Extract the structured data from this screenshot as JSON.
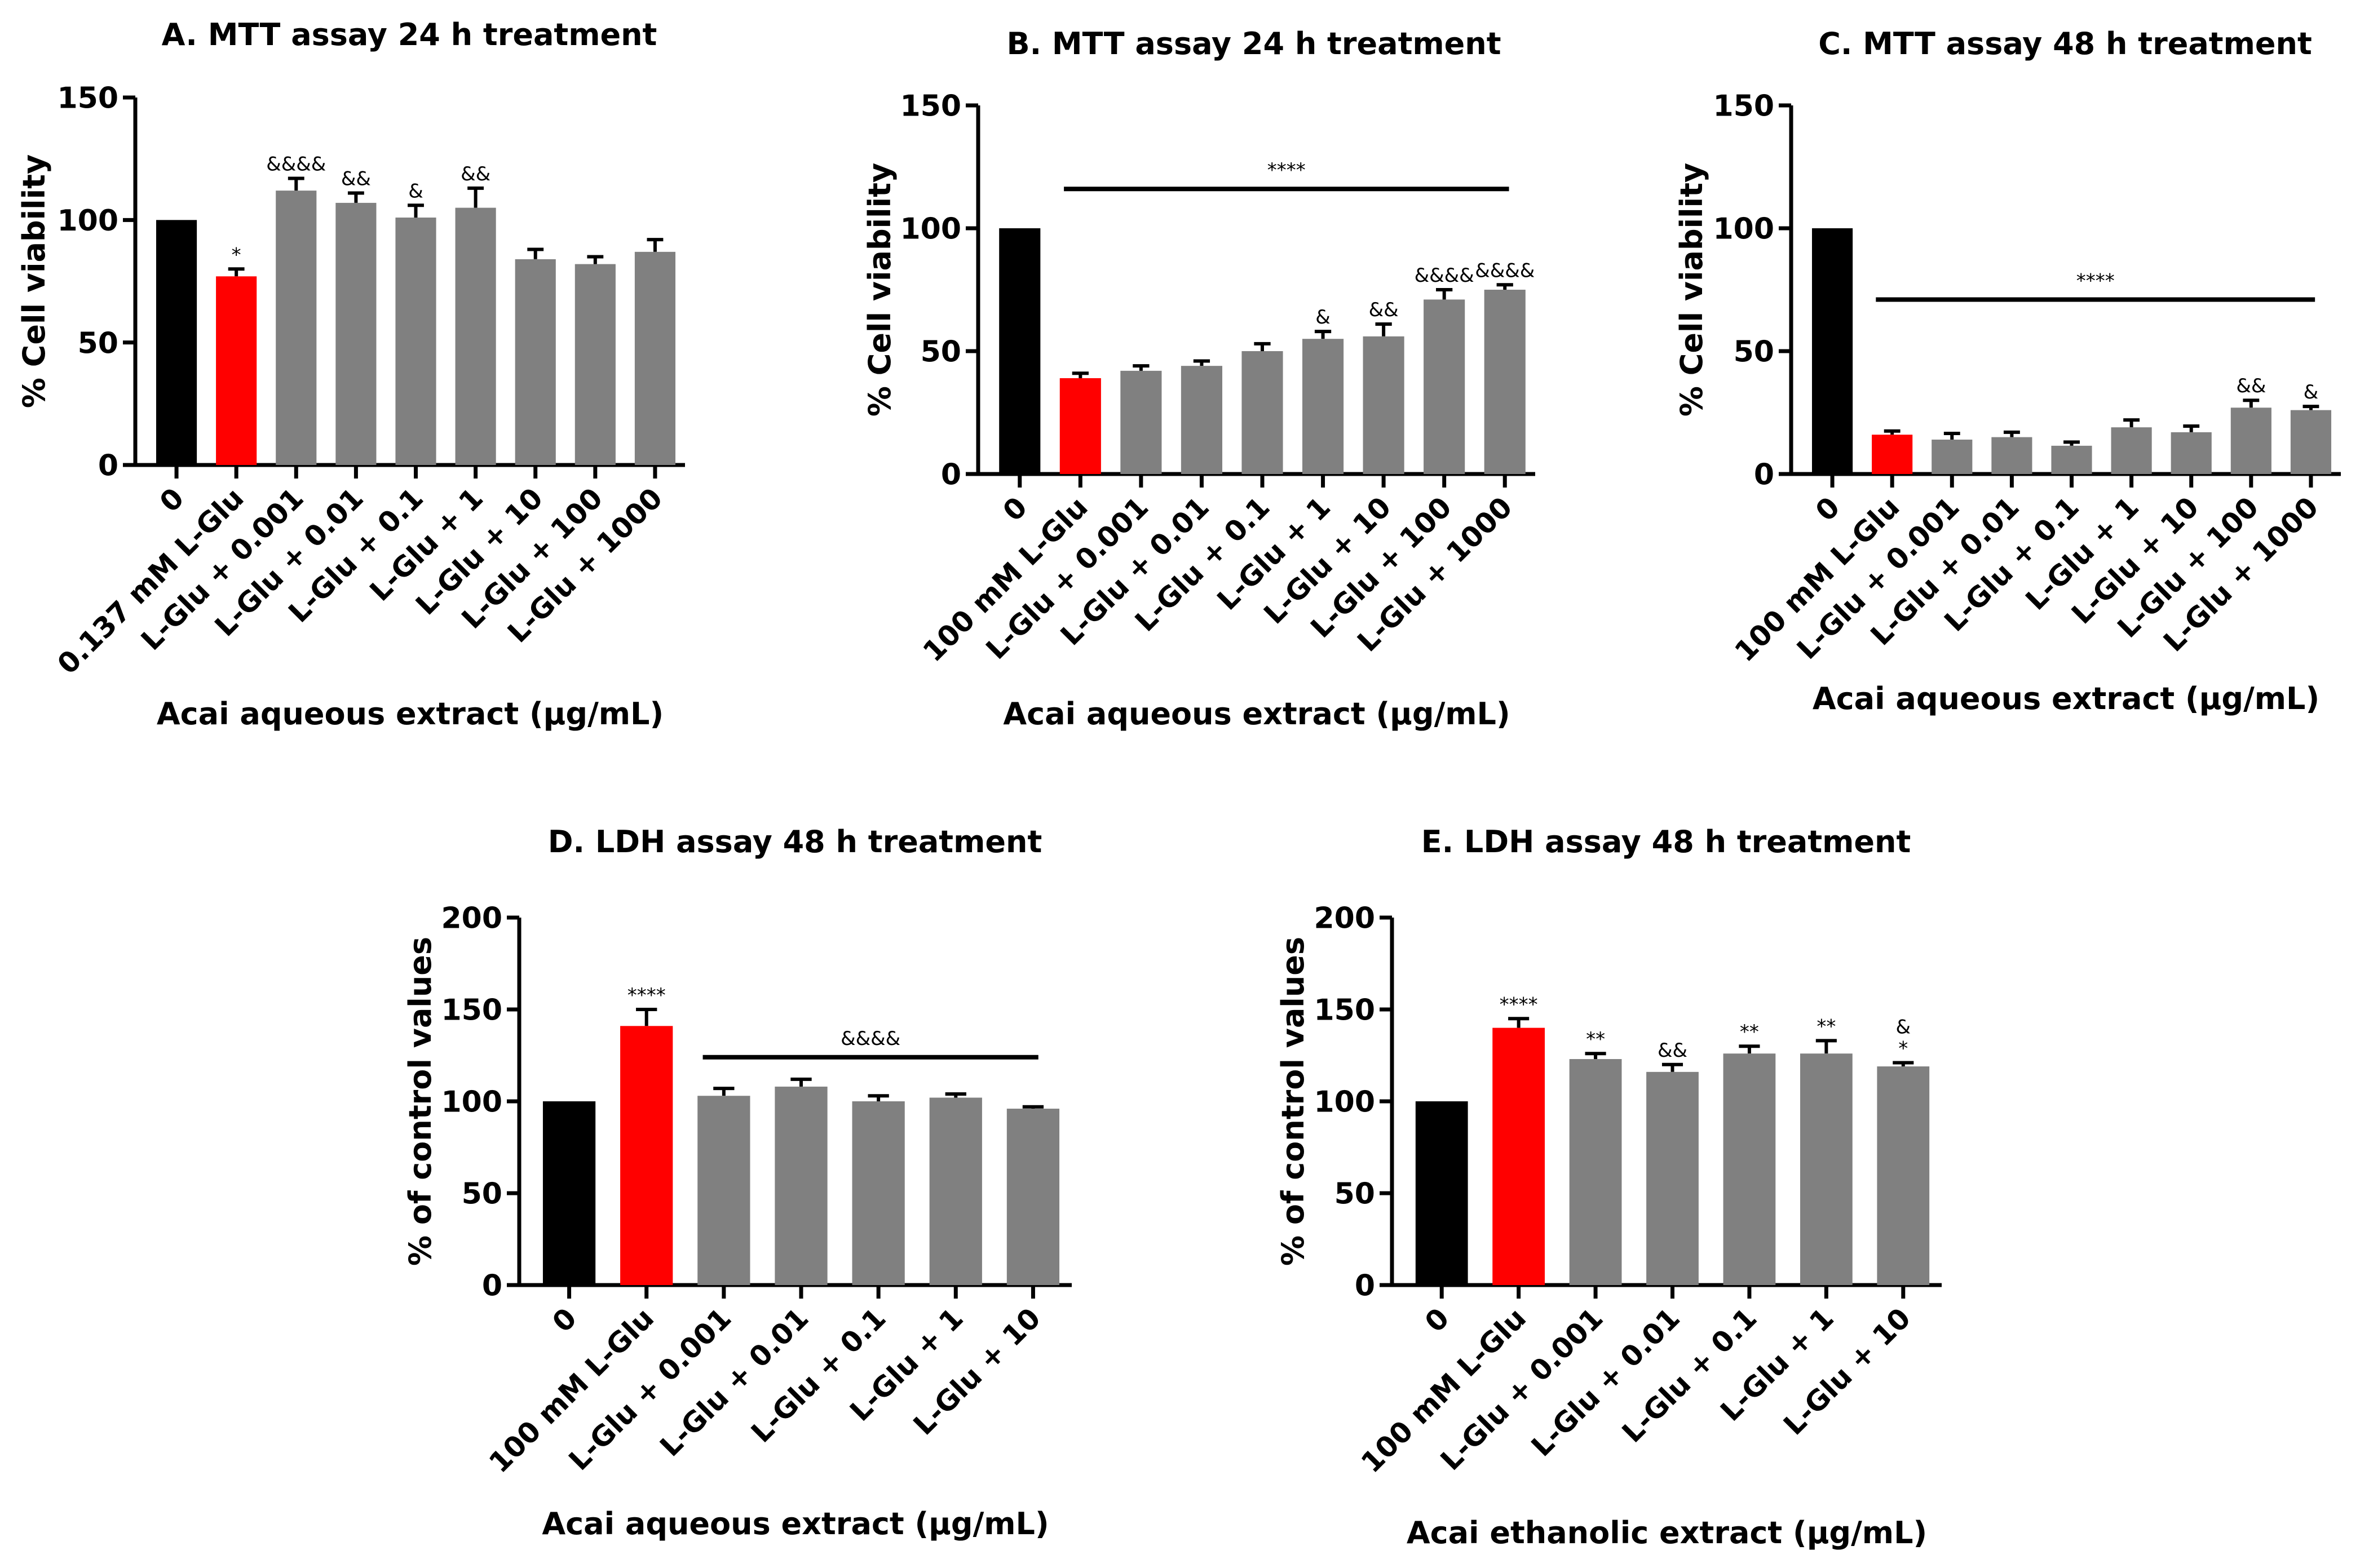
{
  "colors": {
    "control": "#000000",
    "glu": "#ff0000",
    "treatment": "#808080"
  },
  "chart_data": [
    {
      "id": "A",
      "type": "bar",
      "title": "A. MTT assay 24 h treatment",
      "ylabel": "% Cell viability",
      "xlabel": "Acai aqueous extract (µg/mL)",
      "ylim": [
        0,
        150
      ],
      "yticks": [
        0,
        50,
        100,
        150
      ],
      "categories": [
        "0",
        "0.137 mM L-Glu",
        "L-Glu + 0.001",
        "L-Glu + 0.01",
        "L-Glu + 0.1",
        "L-Glu + 1",
        "L-Glu + 10",
        "L-Glu + 100",
        "L-Glu + 1000"
      ],
      "values": [
        100,
        77,
        112,
        107,
        101,
        105,
        84,
        82,
        87
      ],
      "errors": [
        0,
        3,
        5,
        4,
        5,
        8,
        4,
        3,
        5
      ],
      "annotations": [
        "",
        "*",
        "&&&&",
        "&&",
        "&",
        "&&",
        "",
        "",
        ""
      ],
      "brackets": []
    },
    {
      "id": "B",
      "type": "bar",
      "title": "B. MTT assay 24 h treatment",
      "ylabel": "% Cell viability",
      "xlabel": "Acai aqueous extract (µg/mL)",
      "ylim": [
        0,
        150
      ],
      "yticks": [
        0,
        50,
        100,
        150
      ],
      "categories": [
        "0",
        "100 mM L-Glu",
        "L-Glu + 0.001",
        "L-Glu + 0.01",
        "L-Glu + 0.1",
        "L-Glu + 1",
        "L-Glu + 10",
        "L-Glu + 100",
        "L-Glu + 1000"
      ],
      "values": [
        100,
        39,
        42,
        44,
        50,
        55,
        56,
        71,
        75
      ],
      "errors": [
        0,
        2,
        2,
        2,
        3,
        3,
        5,
        4,
        2
      ],
      "annotations": [
        "",
        "",
        "",
        "",
        "",
        "&",
        "&&",
        "&&&&",
        "&&&&"
      ],
      "brackets": [
        {
          "from": 1,
          "to": 8,
          "y": 116,
          "label": "****"
        }
      ]
    },
    {
      "id": "C",
      "type": "bar",
      "title": "C. MTT assay 48 h treatment",
      "ylabel": "% Cell viability",
      "xlabel": "Acai aqueous extract (µg/mL)",
      "ylim": [
        0,
        150
      ],
      "yticks": [
        0,
        50,
        100,
        150
      ],
      "categories": [
        "0",
        "100 mM L-Glu",
        "L-Glu + 0.001",
        "L-Glu + 0.01",
        "L-Glu + 0.1",
        "L-Glu + 1",
        "L-Glu + 10",
        "L-Glu + 100",
        "L-Glu + 1000"
      ],
      "values": [
        100,
        16,
        14,
        15,
        11.5,
        19,
        17,
        27,
        26
      ],
      "errors": [
        0,
        1.5,
        2.5,
        2,
        1.5,
        3,
        2.5,
        3,
        1.5
      ],
      "annotations": [
        "",
        "",
        "",
        "",
        "",
        "",
        "",
        "&&",
        "&"
      ],
      "brackets": [
        {
          "from": 1,
          "to": 8,
          "y": 71,
          "label": "****"
        }
      ]
    },
    {
      "id": "D",
      "type": "bar",
      "title": "D. LDH assay 48 h treatment",
      "ylabel": "% of control values",
      "xlabel": "Acai aqueous extract (µg/mL)",
      "ylim": [
        0,
        200
      ],
      "yticks": [
        0,
        50,
        100,
        150,
        200
      ],
      "categories": [
        "0",
        "100 mM L-Glu",
        "L-Glu + 0.001",
        "L-Glu + 0.01",
        "L-Glu + 0.1",
        "L-Glu + 1",
        "L-Glu + 10"
      ],
      "values": [
        100,
        141,
        103,
        108,
        100,
        102,
        96
      ],
      "errors": [
        0,
        9,
        4,
        4,
        3,
        2,
        1
      ],
      "annotations": [
        "",
        "****",
        "",
        "",
        "",
        "",
        ""
      ],
      "brackets": [
        {
          "from": 2,
          "to": 6,
          "y": 124,
          "label": "&&&&"
        }
      ]
    },
    {
      "id": "E",
      "type": "bar",
      "title": "E. LDH assay 48 h treatment",
      "ylabel": "% of control values",
      "xlabel": "Acai ethanolic extract (µg/mL)",
      "ylim": [
        0,
        200
      ],
      "yticks": [
        0,
        50,
        100,
        150,
        200
      ],
      "categories": [
        "0",
        "100 mM L-Glu",
        "L-Glu + 0.001",
        "L-Glu + 0.01",
        "L-Glu + 0.1",
        "L-Glu + 1",
        "L-Glu + 10"
      ],
      "values": [
        100,
        140,
        123,
        116,
        126,
        126,
        119
      ],
      "errors": [
        0,
        5,
        3,
        4,
        4,
        7,
        2
      ],
      "annotations": [
        "",
        "****",
        "**",
        "&&",
        "**",
        "**",
        "&\n*"
      ],
      "brackets": []
    }
  ]
}
